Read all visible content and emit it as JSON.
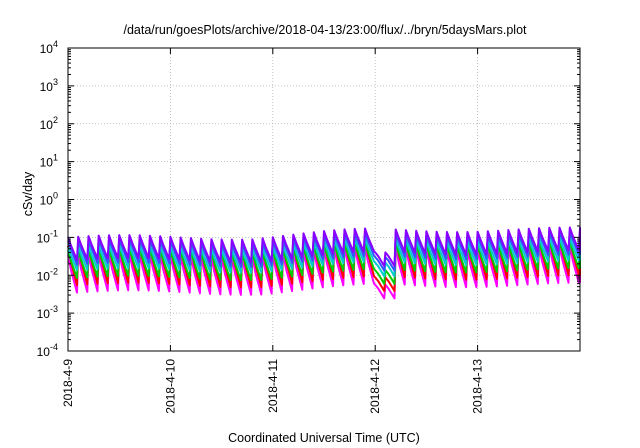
{
  "chart_data": {
    "type": "line",
    "title": "/data/run/goesPlots/archive/2018-04-13/23:00/flux/../bryn/5daysMars.plot",
    "xlabel": "Coordinated Universal Time (UTC)",
    "ylabel": "cSv/day",
    "yscale": "log",
    "ylim": [
      0.0001,
      10000
    ],
    "xlim": [
      "2018-04-09T00:00",
      "2018-04-14T00:00"
    ],
    "grid": true,
    "legend": "none",
    "x_ticks": [
      "2018-4-9",
      "2018-4-10",
      "2018-4-11",
      "2018-4-12",
      "2018-4-13"
    ],
    "y_ticks": [
      {
        "base": "10",
        "exp": "-4"
      },
      {
        "base": "10",
        "exp": "-3"
      },
      {
        "base": "10",
        "exp": "-2"
      },
      {
        "base": "10",
        "exp": "-1"
      },
      {
        "base": "10",
        "exp": "0"
      },
      {
        "base": "10",
        "exp": "1"
      },
      {
        "base": "10",
        "exp": "2"
      },
      {
        "base": "10",
        "exp": "3"
      },
      {
        "base": "10",
        "exp": "4"
      }
    ],
    "pattern": {
      "cycles_per_day": 10,
      "note_outage": "2018-04-12T00:00 to 2018-04-12T02:30"
    },
    "series": [
      {
        "color": "#ff00ff",
        "peak": 0.035,
        "trough": 0.0035
      },
      {
        "color": "#ff0000",
        "peak": 0.06,
        "trough": 0.0055
      },
      {
        "color": "#00cc00",
        "peak": 0.045,
        "trough": 0.0085
      },
      {
        "color": "#00cccc",
        "peak": 0.055,
        "trough": 0.0135
      },
      {
        "color": "#3355ff",
        "peak": 0.08,
        "trough": 0.019
      },
      {
        "color": "#8800ff",
        "peak": 0.1,
        "trough": 0.025
      }
    ],
    "colors": {
      "grid": "#b0b0b0",
      "axis": "#000000"
    }
  }
}
